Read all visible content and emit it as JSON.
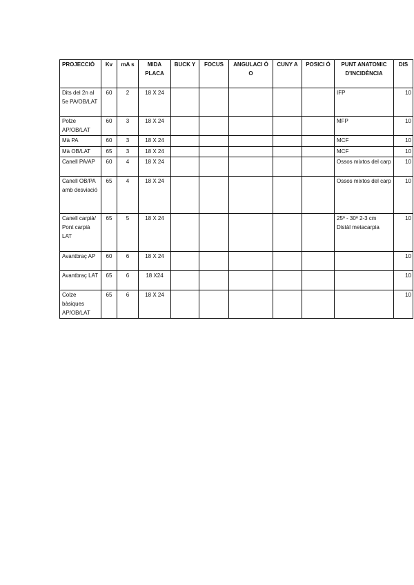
{
  "headers": [
    "PROJECCIÓ",
    "Kv",
    "mA s",
    "MIDA PLACA",
    "BUCK Y",
    "FOCUS",
    "ANGULACI Ó O",
    "CUNY A",
    "POSICI Ó",
    "PUNT ANATOMIC D'INCIDÈNCIA",
    "DIS"
  ],
  "rows": [
    [
      "Dits del 2n al 5e PA/OB/LAT",
      "60",
      "2",
      "18 X 24",
      "",
      "",
      "",
      "",
      "",
      "IFP",
      "10"
    ],
    [
      "Polze AP/OB/LAT",
      "60",
      "3",
      "18 X 24",
      "",
      "",
      "",
      "",
      "",
      "MFP",
      "10"
    ],
    [
      "Mà PA",
      "60",
      "3",
      "18 X 24",
      "",
      "",
      "",
      "",
      "",
      "MCF",
      "10"
    ],
    [
      "Mà OB/LAT",
      "65",
      "3",
      "18 X 24",
      "",
      "",
      "",
      "",
      "",
      "MCF",
      "10"
    ],
    [
      "Canell PA/AP",
      "60",
      "4",
      "18 X 24",
      "",
      "",
      "",
      "",
      "",
      "Ossos mixtos del carp",
      "10"
    ],
    [
      "Canell OB/PA amb desviació",
      "65",
      "4",
      "18 X 24",
      "",
      "",
      "",
      "",
      "",
      "Ossos mixtos del carp",
      "10"
    ],
    [
      "Canell carpià/ Pont carpià LAT",
      "65",
      "5",
      "18 X 24",
      "",
      "",
      "",
      "",
      "",
      "25º - 30º 2-3 cm Distàl metacarpia",
      "10"
    ],
    [
      "Avantbraç AP",
      "60",
      "6",
      "18 X 24",
      "",
      "",
      "",
      "",
      "",
      "",
      "10"
    ],
    [
      "Avantbraç LAT",
      "65",
      "6",
      "18 X24",
      "",
      "",
      "",
      "",
      "",
      "",
      "10"
    ],
    [
      "Colze bàsiques AP/OB/LAT",
      "65",
      "6",
      "18 X 24",
      "",
      "",
      "",
      "",
      "",
      "",
      "10"
    ]
  ]
}
